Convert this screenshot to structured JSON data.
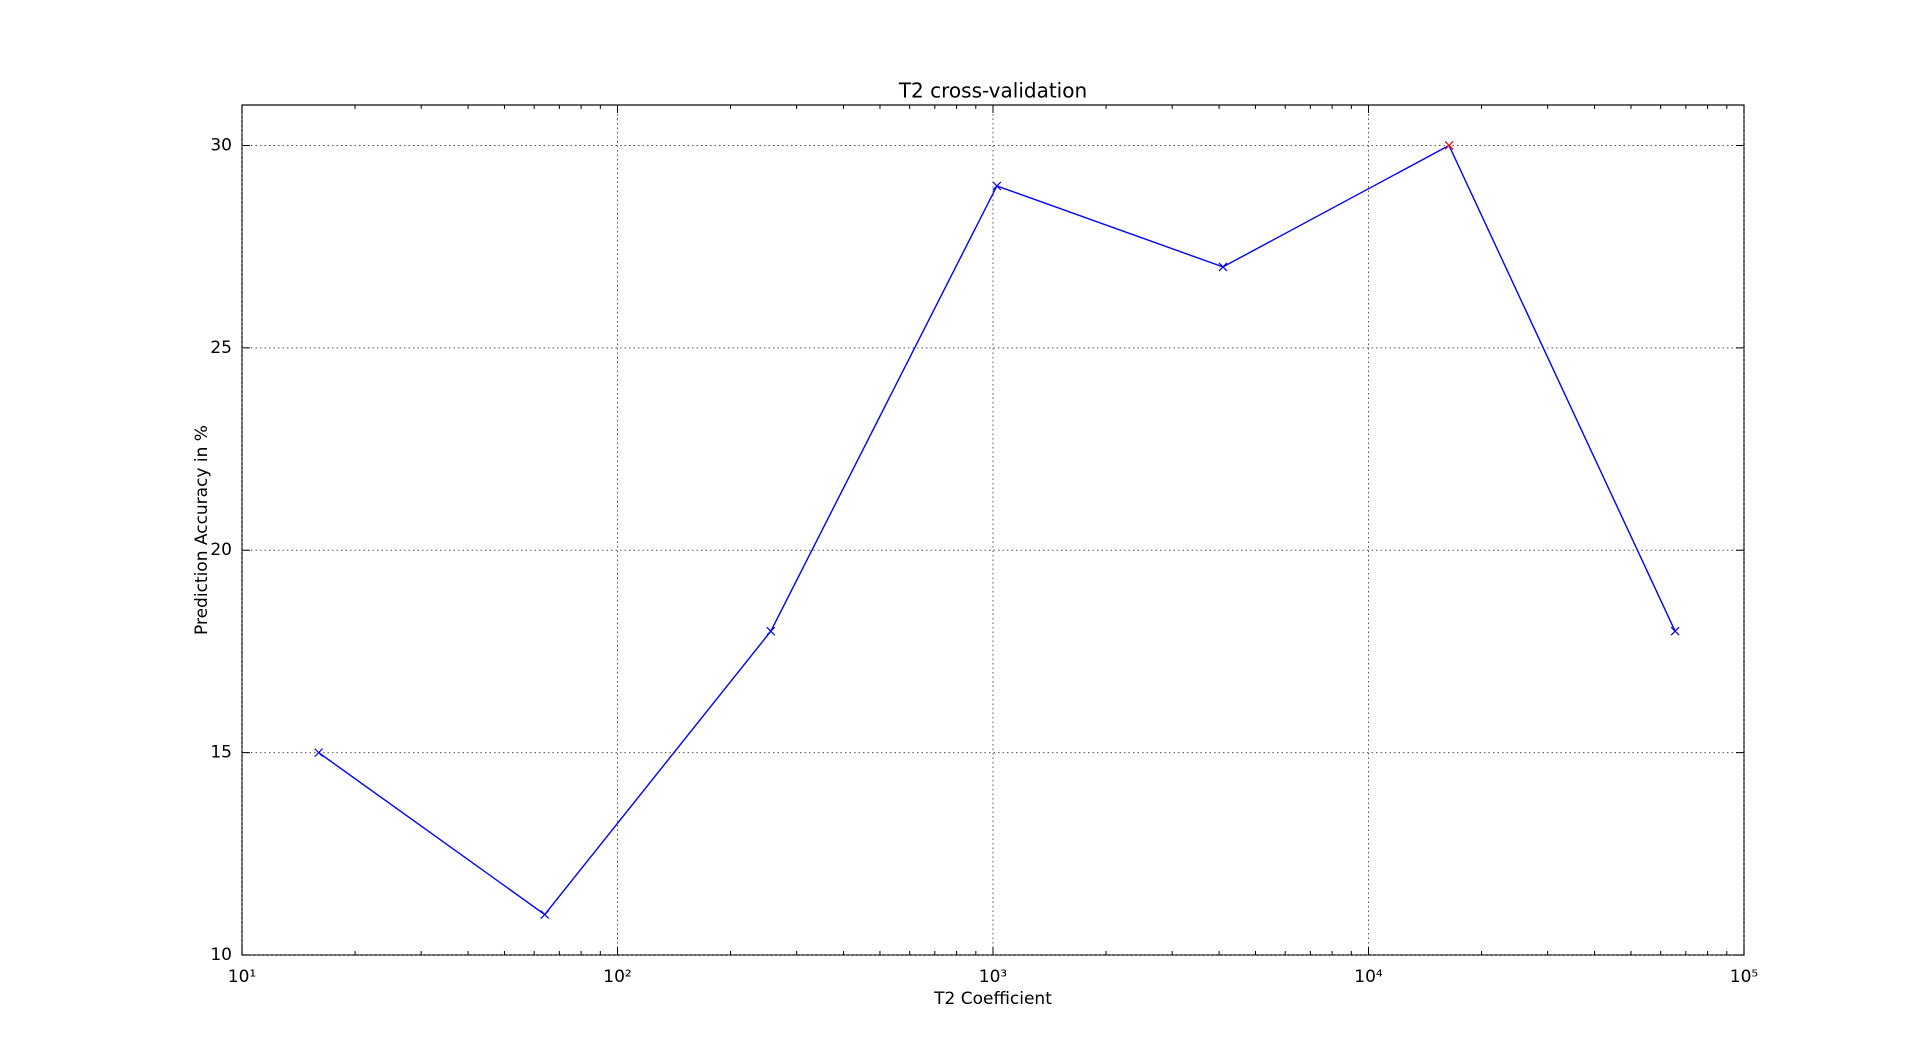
{
  "chart_data": {
    "type": "line",
    "title": "T2 cross-validation",
    "x_label": "T2 Coefficient",
    "y_label": "Prediction Accuracy in %",
    "x_scale": "log",
    "x": [
      16,
      64,
      256,
      1024,
      4096,
      16384,
      65536
    ],
    "series": [
      {
        "color": "#0000ff",
        "values": [
          15,
          11,
          18,
          29,
          27,
          30,
          18
        ],
        "marker": "x",
        "marker_colors": [
          "#0000ff",
          "#0000ff",
          "#0000ff",
          "#0000ff",
          "#0000ff",
          "#ff0000",
          "#0000ff"
        ]
      }
    ],
    "xlim": [
      10,
      100000
    ],
    "xticks": [
      {
        "value": 10,
        "label": "10¹"
      },
      {
        "value": 100,
        "label": "10²"
      },
      {
        "value": 1000,
        "label": "10³"
      },
      {
        "value": 10000,
        "label": "10⁴"
      },
      {
        "value": 100000,
        "label": "10⁵"
      }
    ],
    "xticks_minor": [
      20,
      30,
      40,
      50,
      60,
      70,
      80,
      90,
      200,
      300,
      400,
      500,
      600,
      700,
      800,
      900,
      2000,
      3000,
      4000,
      5000,
      6000,
      7000,
      8000,
      9000,
      20000,
      30000,
      40000,
      50000,
      60000,
      70000,
      80000,
      90000
    ],
    "ylim": [
      10,
      31
    ],
    "yticks": [
      10,
      15,
      20,
      25,
      30
    ],
    "grid": true
  }
}
